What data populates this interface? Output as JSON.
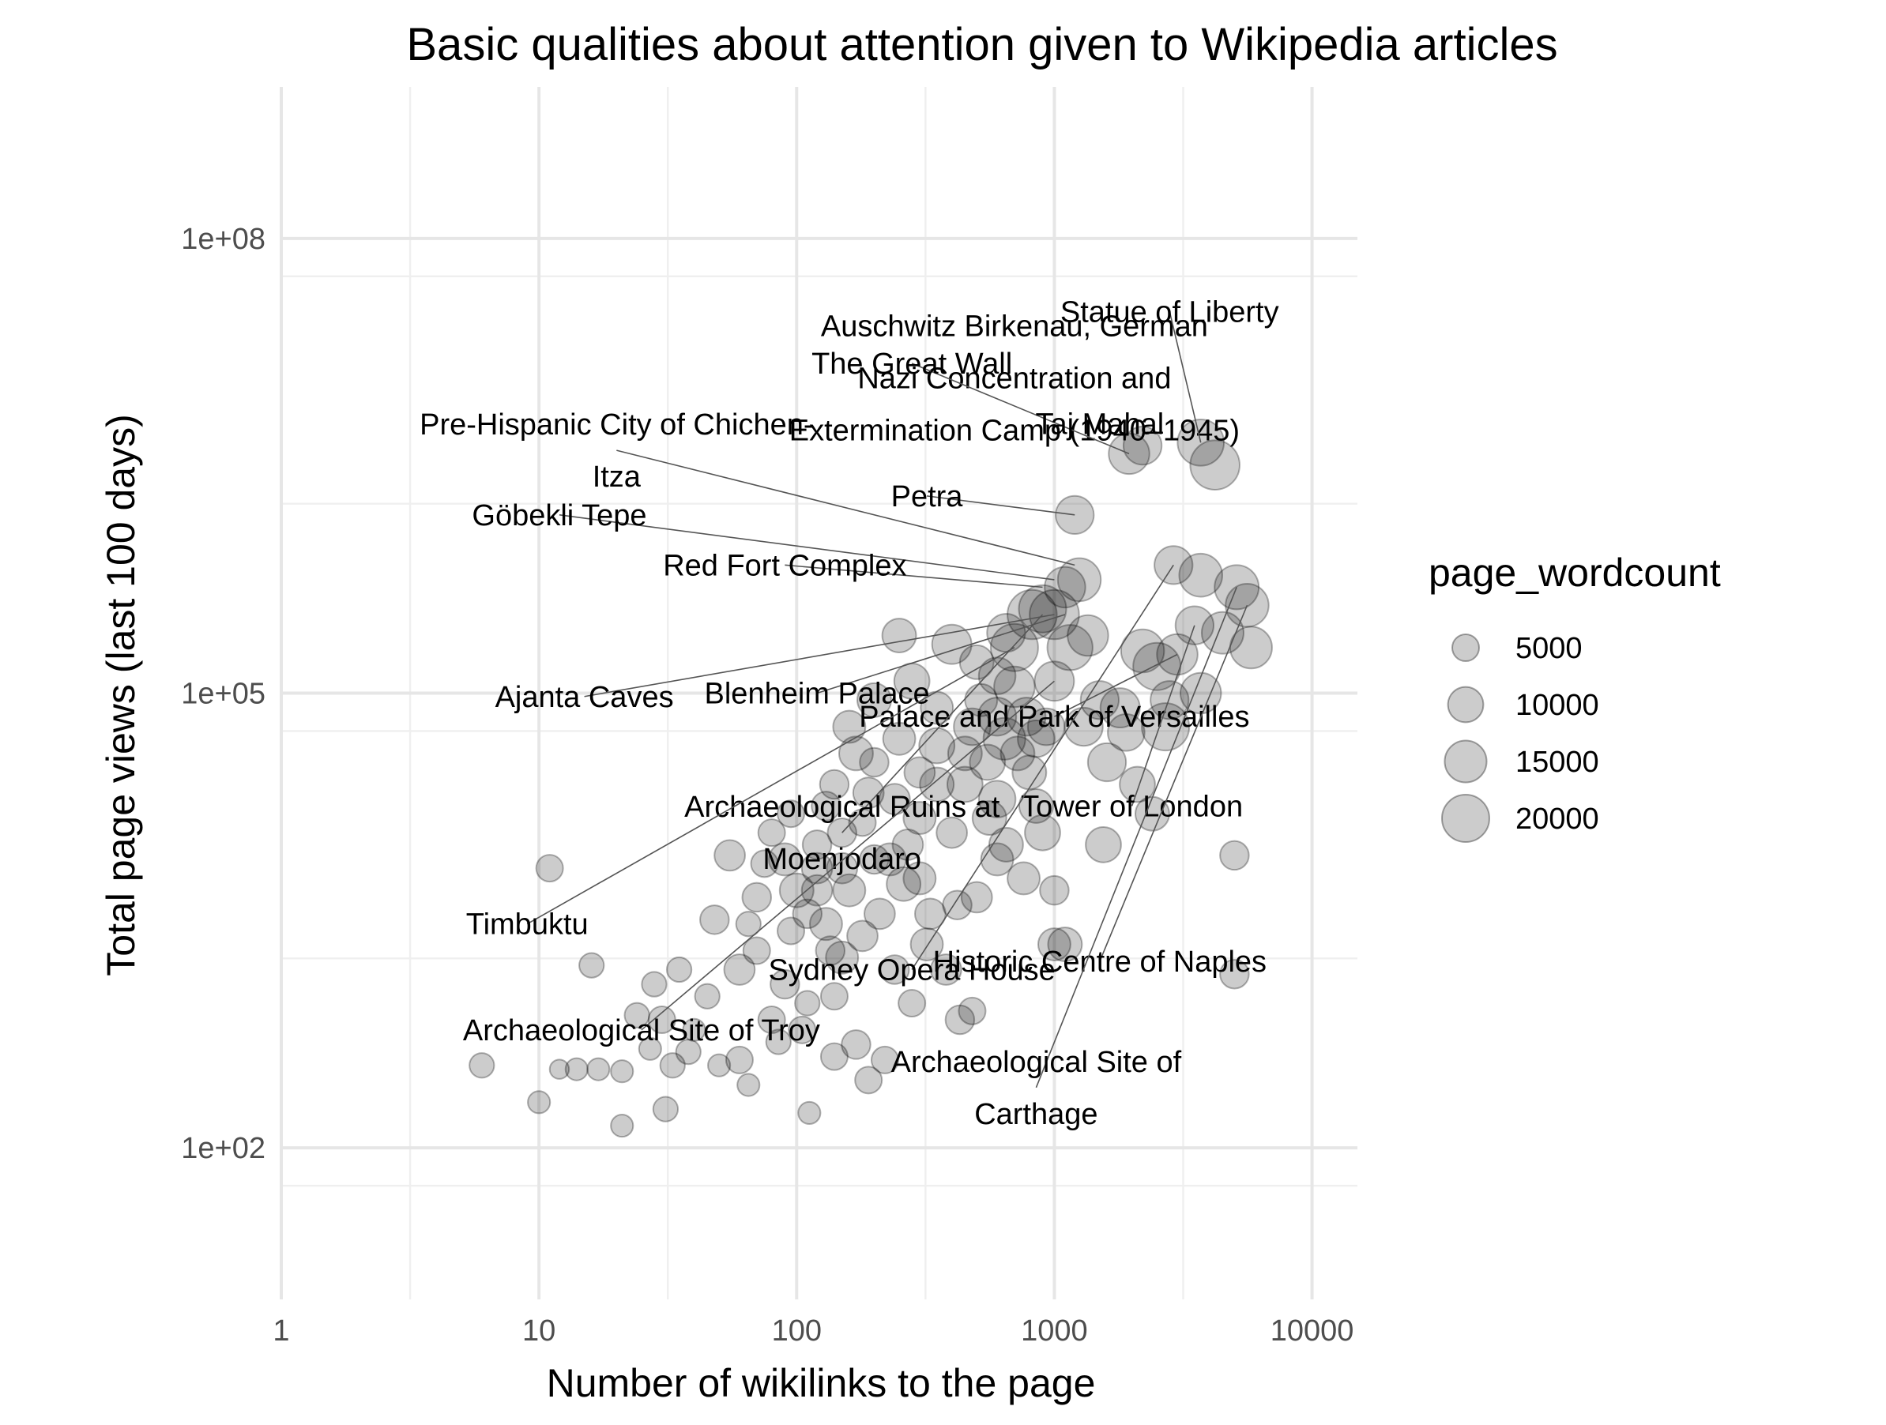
{
  "chart_data": {
    "type": "scatter",
    "title": "Basic qualities about attention given to Wikipedia articles",
    "xlabel": "Number of wikilinks to the page",
    "ylabel": "Total page views (last 100 days)",
    "x_scale": "log10",
    "y_scale": "log10",
    "xlim": [
      1,
      15000
    ],
    "ylim": [
      10,
      1000000000
    ],
    "x_ticks": [
      {
        "value": 1,
        "label": "1"
      },
      {
        "value": 10,
        "label": "10"
      },
      {
        "value": 100,
        "label": "100"
      },
      {
        "value": 1000,
        "label": "1000"
      },
      {
        "value": 10000,
        "label": "10000"
      }
    ],
    "y_ticks": [
      {
        "value": 100,
        "label": "1e+02"
      },
      {
        "value": 100000,
        "label": "1e+05"
      },
      {
        "value": 100000000,
        "label": "1e+08"
      }
    ],
    "grid": true,
    "size_legend": {
      "title": "page_wordcount",
      "placement": "right",
      "entries": [
        {
          "value": 5000,
          "label": "5000"
        },
        {
          "value": 10000,
          "label": "10000"
        },
        {
          "value": 15000,
          "label": "15000"
        },
        {
          "value": 20000,
          "label": "20000"
        }
      ]
    },
    "point_color": "#000000",
    "point_alpha": 0.2,
    "points": [
      {
        "x": 4200,
        "y": 3200000,
        "s": 22000
      },
      {
        "x": 3700,
        "y": 4500000,
        "s": 19000
      },
      {
        "x": 2200,
        "y": 4300000,
        "s": 12000
      },
      {
        "x": 1950,
        "y": 3800000,
        "s": 14000
      },
      {
        "x": 1200,
        "y": 1500000,
        "s": 12000
      },
      {
        "x": 1250,
        "y": 560000,
        "s": 16000
      },
      {
        "x": 1100,
        "y": 500000,
        "s": 14000
      },
      {
        "x": 900,
        "y": 360000,
        "s": 20000
      },
      {
        "x": 820,
        "y": 330000,
        "s": 22000
      },
      {
        "x": 1000,
        "y": 330000,
        "s": 22000
      },
      {
        "x": 1350,
        "y": 240000,
        "s": 14000
      },
      {
        "x": 1150,
        "y": 200000,
        "s": 18000
      },
      {
        "x": 700,
        "y": 200000,
        "s": 20000
      },
      {
        "x": 2900,
        "y": 700000,
        "s": 12000
      },
      {
        "x": 3700,
        "y": 600000,
        "s": 16000
      },
      {
        "x": 5100,
        "y": 500000,
        "s": 17000
      },
      {
        "x": 5600,
        "y": 380000,
        "s": 16000
      },
      {
        "x": 5800,
        "y": 200000,
        "s": 15000
      },
      {
        "x": 3500,
        "y": 280000,
        "s": 12000
      },
      {
        "x": 2200,
        "y": 190000,
        "s": 16000
      },
      {
        "x": 2500,
        "y": 150000,
        "s": 20000
      },
      {
        "x": 3700,
        "y": 100000,
        "s": 14000
      },
      {
        "x": 2700,
        "y": 60000,
        "s": 20000
      },
      {
        "x": 2400,
        "y": 16000,
        "s": 9000
      },
      {
        "x": 1800,
        "y": 80000,
        "s": 13000
      },
      {
        "x": 1500,
        "y": 90000,
        "s": 12000
      },
      {
        "x": 1300,
        "y": 60000,
        "s": 12000
      },
      {
        "x": 1550,
        "y": 10000,
        "s": 10000
      },
      {
        "x": 1100,
        "y": 2200,
        "s": 9000
      },
      {
        "x": 1000,
        "y": 2200,
        "s": 8000
      },
      {
        "x": 1000,
        "y": 5000,
        "s": 6000
      },
      {
        "x": 5000,
        "y": 8500,
        "s": 6000
      },
      {
        "x": 5000,
        "y": 1400,
        "s": 6000
      },
      {
        "x": 250,
        "y": 240000,
        "s": 9000
      },
      {
        "x": 400,
        "y": 210000,
        "s": 13000
      },
      {
        "x": 500,
        "y": 160000,
        "s": 9000
      },
      {
        "x": 600,
        "y": 130000,
        "s": 11000
      },
      {
        "x": 700,
        "y": 110000,
        "s": 14000
      },
      {
        "x": 780,
        "y": 70000,
        "s": 12000
      },
      {
        "x": 850,
        "y": 50000,
        "s": 11000
      },
      {
        "x": 640,
        "y": 50000,
        "s": 15000
      },
      {
        "x": 520,
        "y": 90000,
        "s": 8000
      },
      {
        "x": 450,
        "y": 40000,
        "s": 9000
      },
      {
        "x": 350,
        "y": 80000,
        "s": 8000
      },
      {
        "x": 300,
        "y": 30000,
        "s": 7000
      },
      {
        "x": 160,
        "y": 60000,
        "s": 8000
      },
      {
        "x": 200,
        "y": 35000,
        "s": 6000
      },
      {
        "x": 240,
        "y": 20000,
        "s": 7000
      },
      {
        "x": 140,
        "y": 25000,
        "s": 6000
      },
      {
        "x": 180,
        "y": 14000,
        "s": 5000
      },
      {
        "x": 120,
        "y": 10000,
        "s": 6000
      },
      {
        "x": 90,
        "y": 8000,
        "s": 8000
      },
      {
        "x": 70,
        "y": 4500,
        "s": 6000
      },
      {
        "x": 100,
        "y": 5000,
        "s": 9000
      },
      {
        "x": 130,
        "y": 3000,
        "s": 8000
      },
      {
        "x": 150,
        "y": 1800,
        "s": 8000
      },
      {
        "x": 60,
        "y": 1500,
        "s": 7000
      },
      {
        "x": 48,
        "y": 3200,
        "s": 6000
      },
      {
        "x": 55,
        "y": 8500,
        "s": 7000
      },
      {
        "x": 80,
        "y": 12000,
        "s": 5000
      },
      {
        "x": 200,
        "y": 8000,
        "s": 6000
      },
      {
        "x": 260,
        "y": 5500,
        "s": 9000
      },
      {
        "x": 320,
        "y": 2200,
        "s": 8000
      },
      {
        "x": 380,
        "y": 1500,
        "s": 7000
      },
      {
        "x": 430,
        "y": 700,
        "s": 6000
      },
      {
        "x": 480,
        "y": 800,
        "s": 5000
      },
      {
        "x": 220,
        "y": 380,
        "s": 5000
      },
      {
        "x": 170,
        "y": 480,
        "s": 6000
      },
      {
        "x": 110,
        "y": 900,
        "s": 4000
      },
      {
        "x": 85,
        "y": 500,
        "s": 4000
      },
      {
        "x": 65,
        "y": 260,
        "s": 3000
      },
      {
        "x": 50,
        "y": 350,
        "s": 3000
      },
      {
        "x": 40,
        "y": 600,
        "s": 3000
      },
      {
        "x": 33,
        "y": 350,
        "s": 4000
      },
      {
        "x": 30,
        "y": 700,
        "s": 5000
      },
      {
        "x": 28,
        "y": 1200,
        "s": 4000
      },
      {
        "x": 35,
        "y": 1500,
        "s": 4000
      },
      {
        "x": 45,
        "y": 1000,
        "s": 4000
      },
      {
        "x": 27,
        "y": 450,
        "s": 3000
      },
      {
        "x": 21,
        "y": 320,
        "s": 3000
      },
      {
        "x": 31,
        "y": 180,
        "s": 4000
      },
      {
        "x": 21,
        "y": 140,
        "s": 3000
      },
      {
        "x": 17,
        "y": 330,
        "s": 3000
      },
      {
        "x": 14,
        "y": 330,
        "s": 3000
      },
      {
        "x": 12,
        "y": 330,
        "s": 2000
      },
      {
        "x": 10,
        "y": 200,
        "s": 3000
      },
      {
        "x": 6,
        "y": 350,
        "s": 4000
      },
      {
        "x": 11,
        "y": 7000,
        "s": 5000
      },
      {
        "x": 16,
        "y": 1600,
        "s": 4000
      },
      {
        "x": 112,
        "y": 170,
        "s": 3000
      },
      {
        "x": 190,
        "y": 280,
        "s": 5000
      },
      {
        "x": 60,
        "y": 380,
        "s": 5000
      },
      {
        "x": 38,
        "y": 430,
        "s": 4000
      },
      {
        "x": 24,
        "y": 750,
        "s": 4000
      },
      {
        "x": 95,
        "y": 2700,
        "s": 5000
      },
      {
        "x": 75,
        "y": 7500,
        "s": 5000
      },
      {
        "x": 65,
        "y": 3000,
        "s": 4000
      },
      {
        "x": 150,
        "y": 12000,
        "s": 6000
      },
      {
        "x": 300,
        "y": 15000,
        "s": 8000
      },
      {
        "x": 600,
        "y": 20000,
        "s": 11000
      },
      {
        "x": 900,
        "y": 12000,
        "s": 10000
      },
      {
        "x": 600,
        "y": 8000,
        "s": 8000
      },
      {
        "x": 500,
        "y": 4500,
        "s": 7000
      },
      {
        "x": 400,
        "y": 12000,
        "s": 7000
      },
      {
        "x": 800,
        "y": 30000,
        "s": 9000
      },
      {
        "x": 1000,
        "y": 120000,
        "s": 13000
      },
      {
        "x": 650,
        "y": 250000,
        "s": 12000
      },
      {
        "x": 280,
        "y": 120000,
        "s": 10000
      },
      {
        "x": 200,
        "y": 90000,
        "s": 9000
      },
      {
        "x": 170,
        "y": 40000,
        "s": 9000
      },
      {
        "x": 250,
        "y": 50000,
        "s": 8000
      },
      {
        "x": 350,
        "y": 25000,
        "s": 9000
      },
      {
        "x": 420,
        "y": 4000,
        "s": 6000
      },
      {
        "x": 180,
        "y": 2500,
        "s": 7000
      },
      {
        "x": 120,
        "y": 5000,
        "s": 7000
      },
      {
        "x": 70,
        "y": 2000,
        "s": 5000
      },
      {
        "x": 90,
        "y": 1200,
        "s": 6000
      },
      {
        "x": 140,
        "y": 1000,
        "s": 5000
      },
      {
        "x": 80,
        "y": 700,
        "s": 5000
      },
      {
        "x": 105,
        "y": 600,
        "s": 5000
      },
      {
        "x": 140,
        "y": 400,
        "s": 5000
      },
      {
        "x": 120,
        "y": 7000,
        "s": 7000
      },
      {
        "x": 160,
        "y": 5000,
        "s": 8000
      },
      {
        "x": 210,
        "y": 3500,
        "s": 7000
      },
      {
        "x": 230,
        "y": 8000,
        "s": 8000
      },
      {
        "x": 300,
        "y": 6000,
        "s": 8000
      },
      {
        "x": 450,
        "y": 25000,
        "s": 10000
      },
      {
        "x": 550,
        "y": 35000,
        "s": 10000
      },
      {
        "x": 480,
        "y": 60000,
        "s": 11000
      },
      {
        "x": 350,
        "y": 45000,
        "s": 10000
      },
      {
        "x": 600,
        "y": 70000,
        "s": 12000
      },
      {
        "x": 720,
        "y": 40000,
        "s": 9000
      },
      {
        "x": 150,
        "y": 7000,
        "s": 7000
      },
      {
        "x": 110,
        "y": 3500,
        "s": 6000
      },
      {
        "x": 135,
        "y": 2000,
        "s": 6000
      },
      {
        "x": 240,
        "y": 1500,
        "s": 6000
      },
      {
        "x": 280,
        "y": 900,
        "s": 5000
      },
      {
        "x": 95,
        "y": 16000,
        "s": 5000
      },
      {
        "x": 130,
        "y": 18000,
        "s": 6000
      },
      {
        "x": 190,
        "y": 22000,
        "s": 7000
      },
      {
        "x": 270,
        "y": 10000,
        "s": 7000
      },
      {
        "x": 330,
        "y": 3500,
        "s": 7000
      },
      {
        "x": 560,
        "y": 15000,
        "s": 9000
      },
      {
        "x": 650,
        "y": 10000,
        "s": 9000
      },
      {
        "x": 760,
        "y": 6000,
        "s": 8000
      },
      {
        "x": 850,
        "y": 18000,
        "s": 9000
      },
      {
        "x": 930,
        "y": 60000,
        "s": 11000
      },
      {
        "x": 1600,
        "y": 35000,
        "s": 12000
      },
      {
        "x": 1900,
        "y": 55000,
        "s": 11000
      },
      {
        "x": 2100,
        "y": 25000,
        "s": 10000
      },
      {
        "x": 3000,
        "y": 180000,
        "s": 14000
      },
      {
        "x": 2800,
        "y": 90000,
        "s": 12000
      },
      {
        "x": 4500,
        "y": 250000,
        "s": 15000
      }
    ],
    "annotations": [
      {
        "lines": [
          "Auschwitz Birkenau, German",
          "Nazi Concentration and",
          "Extermination Camp (1940–1945)"
        ],
        "align": "middle",
        "label_x": 700,
        "label_y": 12000000,
        "point_x": 4200,
        "point_y": 3200000,
        "show_line": false
      },
      {
        "lines": [
          "Statue of Liberty"
        ],
        "align": "middle",
        "label_x": 2800,
        "label_y": 33000000,
        "point_x": 3700,
        "point_y": 4500000,
        "show_line": true
      },
      {
        "lines": [
          "Pre-Hispanic City of Chichen-",
          "Itza"
        ],
        "align": "middle",
        "label_x": 20,
        "label_y": 4000000,
        "point_x": 1200,
        "point_y": 700000,
        "show_line": true
      },
      {
        "lines": [
          "The Great Wall"
        ],
        "align": "middle",
        "label_x": 280,
        "label_y": 15000000,
        "point_x": 1950,
        "point_y": 3800000,
        "show_line": true
      },
      {
        "lines": [
          "Taj Mahal"
        ],
        "align": "middle",
        "label_x": 1500,
        "label_y": 6000000,
        "point_x": 2200,
        "point_y": 4300000,
        "show_line": false
      },
      {
        "lines": [
          "Petra"
        ],
        "align": "middle",
        "label_x": 320,
        "label_y": 2000000,
        "point_x": 1200,
        "point_y": 1500000,
        "show_line": true
      },
      {
        "lines": [
          "Göbekli Tepe"
        ],
        "align": "middle",
        "label_x": 12,
        "label_y": 1500000,
        "point_x": 1000,
        "point_y": 560000,
        "show_line": true
      },
      {
        "lines": [
          "Red Fort Complex"
        ],
        "align": "middle",
        "label_x": 90,
        "label_y": 700000,
        "point_x": 900,
        "point_y": 500000,
        "show_line": true
      },
      {
        "lines": [
          "Blenheim Palace"
        ],
        "align": "middle",
        "label_x": 120,
        "label_y": 100000,
        "point_x": 1100,
        "point_y": 330000,
        "show_line": true
      },
      {
        "lines": [
          "Ajanta Caves"
        ],
        "align": "middle",
        "label_x": 15,
        "label_y": 95000,
        "point_x": 1000,
        "point_y": 330000,
        "show_line": true
      },
      {
        "lines": [
          "Palace and Park of Versailles"
        ],
        "align": "middle",
        "label_x": 1000,
        "label_y": 70000,
        "point_x": 3000,
        "point_y": 180000,
        "show_line": true
      },
      {
        "lines": [
          "Archaeological Ruins at",
          "Moenjodaro"
        ],
        "align": "middle",
        "label_x": 150,
        "label_y": 12000,
        "point_x": 900,
        "point_y": 330000,
        "show_line": true
      },
      {
        "lines": [
          "Tower of London"
        ],
        "align": "middle",
        "label_x": 2000,
        "label_y": 18000,
        "point_x": 3500,
        "point_y": 280000,
        "show_line": true
      },
      {
        "lines": [
          "Timbuktu"
        ],
        "align": "middle",
        "label_x": 9,
        "label_y": 3000,
        "point_x": 700,
        "point_y": 200000,
        "show_line": true
      },
      {
        "lines": [
          "Historic Centre of Naples"
        ],
        "align": "middle",
        "label_x": 1500,
        "label_y": 1700,
        "point_x": 5600,
        "point_y": 380000,
        "show_line": true
      },
      {
        "lines": [
          "Sydney Opera House"
        ],
        "align": "middle",
        "label_x": 280,
        "label_y": 1500,
        "point_x": 2900,
        "point_y": 700000,
        "show_line": true
      },
      {
        "lines": [
          "Archaeological Site of Troy"
        ],
        "align": "middle",
        "label_x": 25,
        "label_y": 600,
        "point_x": 1000,
        "point_y": 120000,
        "show_line": true
      },
      {
        "lines": [
          "Archaeological Site of",
          "Carthage"
        ],
        "align": "middle",
        "label_x": 850,
        "label_y": 250,
        "point_x": 5100,
        "point_y": 500000,
        "show_line": true
      }
    ]
  }
}
